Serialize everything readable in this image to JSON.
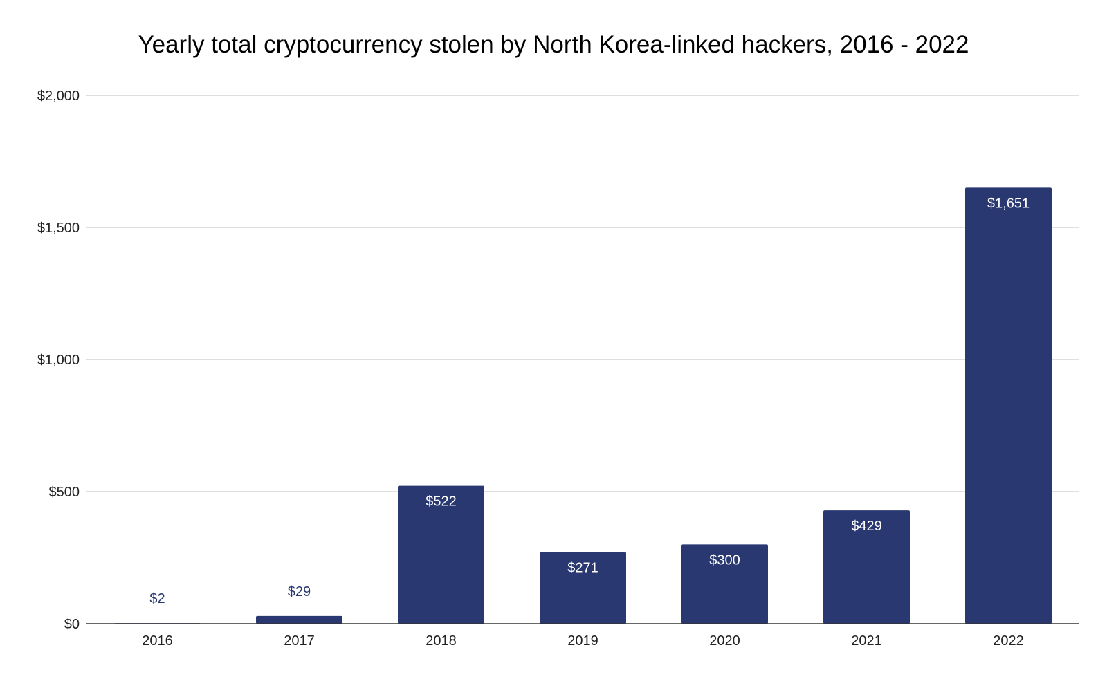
{
  "chart_data": {
    "type": "bar",
    "title": "Yearly total cryptocurrency stolen by North Korea-linked hackers, 2016 - 2022",
    "categories": [
      "2016",
      "2017",
      "2018",
      "2019",
      "2020",
      "2021",
      "2022"
    ],
    "values": [
      2,
      29,
      522,
      271,
      300,
      429,
      1651
    ],
    "value_labels": [
      "$2",
      "$29",
      "$522",
      "$271",
      "$300",
      "$429",
      "$1,651"
    ],
    "y_ticks": [
      0,
      500,
      1000,
      1500,
      2000
    ],
    "y_tick_labels": [
      "$0",
      "$500",
      "$1,000",
      "$1,500",
      "$2,000"
    ],
    "ylim": [
      0,
      2000
    ],
    "grid": true,
    "legend": "none"
  },
  "colors": {
    "bar": "#293871",
    "label_inside": "#ffffff",
    "label_outside": "#293871",
    "grid": "#cccccc",
    "axis": "#333333"
  }
}
